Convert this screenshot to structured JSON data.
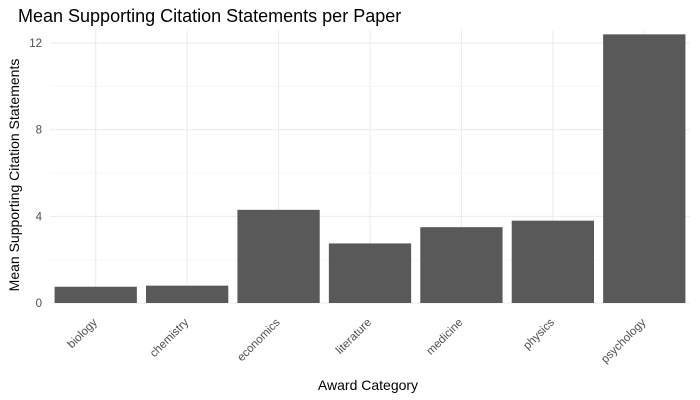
{
  "chart_data": {
    "type": "bar",
    "title": "Mean Supporting Citation Statements per Paper",
    "xlabel": "Award Category",
    "ylabel": "Mean Supporting Citation Statements",
    "categories": [
      "biology",
      "chemistry",
      "economics",
      "literature",
      "medicine",
      "physics",
      "psychology"
    ],
    "values": [
      0.75,
      0.8,
      4.3,
      2.75,
      3.5,
      3.8,
      12.4
    ],
    "ylim": [
      0,
      12.6
    ],
    "yticks": [
      0,
      4,
      8,
      12
    ],
    "grid": true,
    "legend": "none",
    "bar_color": "#595959"
  }
}
